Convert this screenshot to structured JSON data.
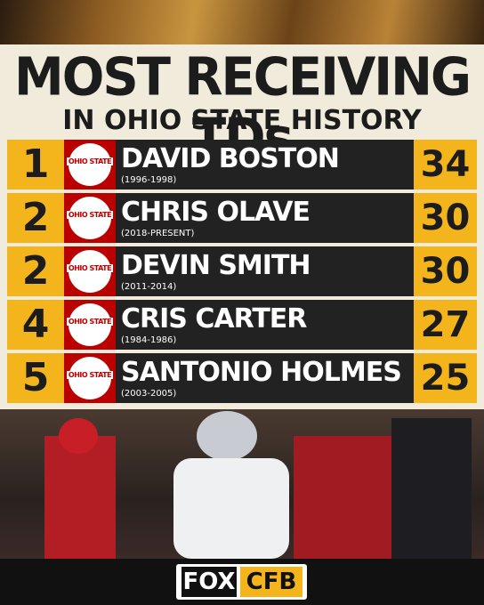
{
  "header": {
    "title": "MOST RECEIVING TDs",
    "subtitle": "IN OHIO STATE HISTORY"
  },
  "logo_text": "OHIO STATE",
  "table": {
    "rows": [
      {
        "rank": "1",
        "name": "DAVID BOSTON",
        "years": "(1996-1998)",
        "tds": "34"
      },
      {
        "rank": "2",
        "name": "CHRIS OLAVE",
        "years": "(2018-PRESENT)",
        "tds": "30"
      },
      {
        "rank": "2",
        "name": "DEVIN SMITH",
        "years": "(2011-2014)",
        "tds": "30"
      },
      {
        "rank": "4",
        "name": "CRIS CARTER",
        "years": "(1984-1986)",
        "tds": "27"
      },
      {
        "rank": "5",
        "name": "SANTONIO HOLMES",
        "years": "(2003-2005)",
        "tds": "25"
      }
    ]
  },
  "footer": {
    "brand": "FOX",
    "network": "CFB"
  }
}
